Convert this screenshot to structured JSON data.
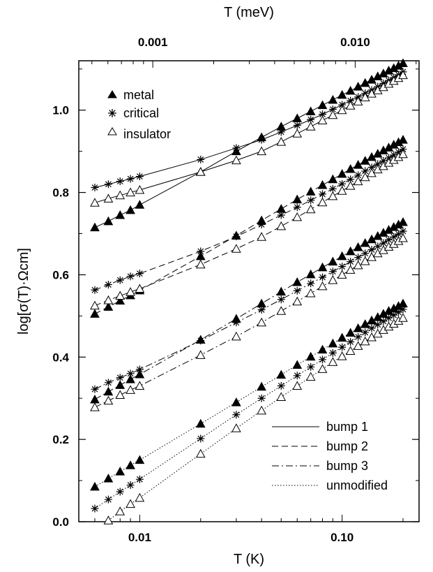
{
  "chart_data": {
    "type": "scatter",
    "xscale": "log",
    "xlim": [
      0.005,
      0.24
    ],
    "ylim": [
      0.0,
      1.12
    ],
    "xlabel": "T (K)",
    "ylabel": "log[σ(T)·Ωcm]",
    "top_xlabel": "T (meV)",
    "x_ticks": [
      {
        "value": 0.01,
        "label": "0.01"
      },
      {
        "value": 0.1,
        "label": "0.10"
      }
    ],
    "top_ticks": [
      {
        "value": 0.001,
        "label": "0.001"
      },
      {
        "value": 0.01,
        "label": "0.010"
      }
    ],
    "top_axis_K_per_meV": 11.6045,
    "y_ticks": [
      0.0,
      0.2,
      0.4,
      0.6,
      0.8,
      1.0
    ],
    "y_tick_labels": [
      "0.0",
      "0.2",
      "0.4",
      "0.6",
      "0.8",
      "1.0"
    ],
    "legend_markers": {
      "position": "top-left",
      "entries": [
        {
          "marker": "filled-triangle",
          "label": "metal"
        },
        {
          "marker": "asterisk",
          "label": "critical"
        },
        {
          "marker": "open-triangle",
          "label": "insulator"
        }
      ]
    },
    "legend_lines": {
      "position": "bottom-right",
      "entries": [
        {
          "dash": "solid",
          "label": "bump 1"
        },
        {
          "dash": "dashed",
          "label": "bump 2"
        },
        {
          "dash": "dashdot",
          "label": "bump 3"
        },
        {
          "dash": "dotted",
          "label": "unmodified"
        }
      ]
    },
    "series": [
      {
        "group": "bump 1",
        "sample": "metal",
        "marker": "filled-triangle",
        "dash": "solid",
        "x": [
          0.006,
          0.007,
          0.008,
          0.009,
          0.01,
          0.02,
          0.03,
          0.04,
          0.05,
          0.06,
          0.07,
          0.08,
          0.09,
          0.1,
          0.11,
          0.12,
          0.13,
          0.14,
          0.15,
          0.16,
          0.17,
          0.18,
          0.19,
          0.2
        ],
        "y": [
          0.715,
          0.73,
          0.745,
          0.757,
          0.77,
          0.85,
          0.9,
          0.934,
          0.96,
          0.98,
          0.997,
          1.012,
          1.025,
          1.037,
          1.047,
          1.057,
          1.066,
          1.074,
          1.082,
          1.089,
          1.096,
          1.102,
          1.108,
          1.114
        ]
      },
      {
        "group": "bump 1",
        "sample": "critical",
        "marker": "asterisk",
        "dash": "solid",
        "x": [
          0.006,
          0.007,
          0.008,
          0.009,
          0.01,
          0.02,
          0.03,
          0.04,
          0.05,
          0.06,
          0.07,
          0.08,
          0.09,
          0.1,
          0.11,
          0.12,
          0.13,
          0.14,
          0.15,
          0.16,
          0.17,
          0.18,
          0.19,
          0.2
        ],
        "y": [
          0.812,
          0.82,
          0.827,
          0.833,
          0.839,
          0.88,
          0.908,
          0.928,
          0.947,
          0.963,
          0.977,
          0.99,
          1.002,
          1.013,
          1.023,
          1.032,
          1.041,
          1.049,
          1.057,
          1.065,
          1.072,
          1.079,
          1.086,
          1.093
        ]
      },
      {
        "group": "bump 1",
        "sample": "insulator",
        "marker": "open-triangle",
        "dash": "solid",
        "x": [
          0.006,
          0.007,
          0.008,
          0.009,
          0.01,
          0.02,
          0.03,
          0.04,
          0.05,
          0.06,
          0.07,
          0.08,
          0.09,
          0.1,
          0.11,
          0.12,
          0.13,
          0.14,
          0.15,
          0.16,
          0.17,
          0.18,
          0.19,
          0.2
        ],
        "y": [
          0.775,
          0.785,
          0.793,
          0.8,
          0.806,
          0.85,
          0.878,
          0.9,
          0.923,
          0.943,
          0.96,
          0.975,
          0.988,
          1.0,
          1.011,
          1.021,
          1.031,
          1.04,
          1.048,
          1.056,
          1.064,
          1.071,
          1.078,
          1.085
        ]
      },
      {
        "group": "bump 2",
        "sample": "metal",
        "marker": "filled-triangle",
        "dash": "dashed",
        "x": [
          0.006,
          0.007,
          0.008,
          0.009,
          0.01,
          0.02,
          0.03,
          0.04,
          0.05,
          0.06,
          0.07,
          0.08,
          0.09,
          0.1,
          0.11,
          0.12,
          0.13,
          0.14,
          0.15,
          0.16,
          0.17,
          0.18,
          0.19,
          0.2
        ],
        "y": [
          0.505,
          0.522,
          0.537,
          0.55,
          0.562,
          0.645,
          0.695,
          0.732,
          0.76,
          0.783,
          0.802,
          0.818,
          0.832,
          0.845,
          0.857,
          0.867,
          0.877,
          0.886,
          0.894,
          0.902,
          0.909,
          0.916,
          0.922,
          0.928
        ]
      },
      {
        "group": "bump 2",
        "sample": "critical",
        "marker": "asterisk",
        "dash": "dashed",
        "x": [
          0.006,
          0.007,
          0.008,
          0.009,
          0.01,
          0.02,
          0.03,
          0.04,
          0.05,
          0.06,
          0.07,
          0.08,
          0.09,
          0.1,
          0.11,
          0.12,
          0.13,
          0.14,
          0.15,
          0.16,
          0.17,
          0.18,
          0.19,
          0.2
        ],
        "y": [
          0.563,
          0.576,
          0.587,
          0.596,
          0.603,
          0.657,
          0.693,
          0.722,
          0.745,
          0.764,
          0.781,
          0.796,
          0.809,
          0.821,
          0.832,
          0.842,
          0.852,
          0.861,
          0.869,
          0.877,
          0.884,
          0.891,
          0.898,
          0.905
        ]
      },
      {
        "group": "bump 2",
        "sample": "insulator",
        "marker": "open-triangle",
        "dash": "dashed",
        "x": [
          0.006,
          0.007,
          0.008,
          0.009,
          0.01,
          0.02,
          0.03,
          0.04,
          0.05,
          0.06,
          0.07,
          0.08,
          0.09,
          0.1,
          0.11,
          0.12,
          0.13,
          0.14,
          0.15,
          0.16,
          0.17,
          0.18,
          0.19,
          0.2
        ],
        "y": [
          0.525,
          0.538,
          0.549,
          0.558,
          0.566,
          0.625,
          0.663,
          0.692,
          0.718,
          0.74,
          0.759,
          0.776,
          0.791,
          0.804,
          0.816,
          0.827,
          0.837,
          0.847,
          0.856,
          0.864,
          0.872,
          0.879,
          0.886,
          0.893
        ]
      },
      {
        "group": "bump 3",
        "sample": "metal",
        "marker": "filled-triangle",
        "dash": "dashdot",
        "x": [
          0.006,
          0.007,
          0.008,
          0.009,
          0.01,
          0.02,
          0.03,
          0.04,
          0.05,
          0.06,
          0.07,
          0.08,
          0.09,
          0.1,
          0.11,
          0.12,
          0.13,
          0.14,
          0.15,
          0.16,
          0.17,
          0.18,
          0.19,
          0.2
        ],
        "y": [
          0.297,
          0.316,
          0.332,
          0.346,
          0.358,
          0.442,
          0.493,
          0.53,
          0.559,
          0.582,
          0.601,
          0.618,
          0.632,
          0.645,
          0.657,
          0.667,
          0.677,
          0.686,
          0.694,
          0.702,
          0.709,
          0.716,
          0.722,
          0.728
        ]
      },
      {
        "group": "bump 3",
        "sample": "critical",
        "marker": "asterisk",
        "dash": "dashdot",
        "x": [
          0.006,
          0.007,
          0.008,
          0.009,
          0.01,
          0.02,
          0.03,
          0.04,
          0.05,
          0.06,
          0.07,
          0.08,
          0.09,
          0.1,
          0.11,
          0.12,
          0.13,
          0.14,
          0.15,
          0.16,
          0.17,
          0.18,
          0.19,
          0.2
        ],
        "y": [
          0.322,
          0.338,
          0.35,
          0.36,
          0.37,
          0.44,
          0.484,
          0.515,
          0.54,
          0.561,
          0.579,
          0.594,
          0.608,
          0.62,
          0.632,
          0.642,
          0.652,
          0.661,
          0.669,
          0.677,
          0.685,
          0.692,
          0.699,
          0.706
        ]
      },
      {
        "group": "bump 3",
        "sample": "insulator",
        "marker": "open-triangle",
        "dash": "dashdot",
        "x": [
          0.006,
          0.007,
          0.008,
          0.009,
          0.01,
          0.02,
          0.03,
          0.04,
          0.05,
          0.06,
          0.07,
          0.08,
          0.09,
          0.1,
          0.11,
          0.12,
          0.13,
          0.14,
          0.15,
          0.16,
          0.17,
          0.18,
          0.19,
          0.2
        ],
        "y": [
          0.278,
          0.294,
          0.308,
          0.32,
          0.33,
          0.405,
          0.45,
          0.484,
          0.512,
          0.535,
          0.555,
          0.572,
          0.587,
          0.6,
          0.612,
          0.623,
          0.633,
          0.643,
          0.652,
          0.66,
          0.668,
          0.675,
          0.682,
          0.689
        ]
      },
      {
        "group": "unmodified",
        "sample": "metal",
        "marker": "filled-triangle",
        "dash": "dotted",
        "x": [
          0.006,
          0.007,
          0.008,
          0.009,
          0.01,
          0.02,
          0.03,
          0.04,
          0.05,
          0.06,
          0.07,
          0.08,
          0.09,
          0.1,
          0.11,
          0.12,
          0.13,
          0.14,
          0.15,
          0.16,
          0.17,
          0.18,
          0.19,
          0.2
        ],
        "y": [
          0.085,
          0.105,
          0.122,
          0.137,
          0.15,
          0.238,
          0.29,
          0.328,
          0.357,
          0.381,
          0.401,
          0.418,
          0.433,
          0.447,
          0.459,
          0.47,
          0.48,
          0.489,
          0.497,
          0.505,
          0.512,
          0.518,
          0.524,
          0.53
        ]
      },
      {
        "group": "unmodified",
        "sample": "critical",
        "marker": "asterisk",
        "dash": "dotted",
        "x": [
          0.006,
          0.007,
          0.008,
          0.009,
          0.01,
          0.02,
          0.03,
          0.04,
          0.05,
          0.06,
          0.07,
          0.08,
          0.09,
          0.1,
          0.11,
          0.12,
          0.13,
          0.14,
          0.15,
          0.16,
          0.17,
          0.18,
          0.19,
          0.2
        ],
        "y": [
          0.032,
          0.054,
          0.073,
          0.089,
          0.103,
          0.202,
          0.26,
          0.3,
          0.33,
          0.355,
          0.376,
          0.394,
          0.41,
          0.424,
          0.437,
          0.449,
          0.46,
          0.47,
          0.479,
          0.487,
          0.495,
          0.502,
          0.509,
          0.516
        ]
      },
      {
        "group": "unmodified",
        "sample": "insulator",
        "marker": "open-triangle",
        "dash": "dotted",
        "x": [
          0.007,
          0.008,
          0.009,
          0.01,
          0.02,
          0.03,
          0.04,
          0.05,
          0.06,
          0.07,
          0.08,
          0.09,
          0.1,
          0.11,
          0.12,
          0.13,
          0.14,
          0.15,
          0.16,
          0.17,
          0.18,
          0.19,
          0.2
        ],
        "y": [
          0.003,
          0.025,
          0.043,
          0.058,
          0.165,
          0.227,
          0.27,
          0.303,
          0.33,
          0.352,
          0.371,
          0.388,
          0.402,
          0.415,
          0.427,
          0.438,
          0.448,
          0.457,
          0.466,
          0.474,
          0.481,
          0.488,
          0.495
        ]
      }
    ]
  }
}
